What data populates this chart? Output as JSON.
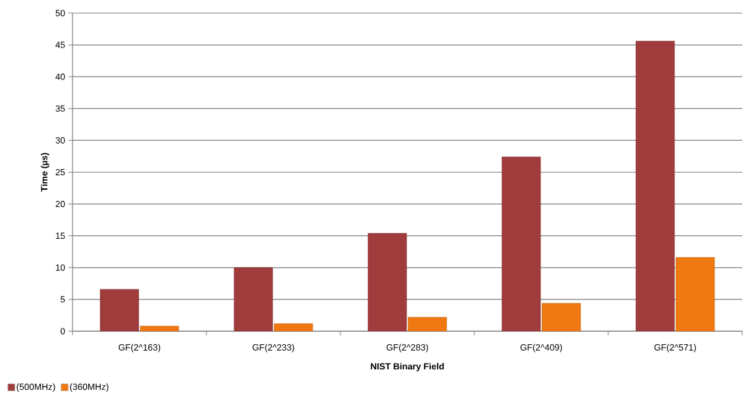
{
  "chart_data": {
    "type": "bar",
    "xlabel": "NIST Binary Field",
    "ylabel": "Time (µs)",
    "categories": [
      "GF(2^163)",
      "GF(2^233)",
      "GF(2^283)",
      "GF(2^409)",
      "GF(2^571)"
    ],
    "series": [
      {
        "name": "(500MHz)",
        "color": "#a03c3c",
        "values": [
          6.6,
          10,
          15.4,
          27.4,
          45.6
        ]
      },
      {
        "name": "(360MHz)",
        "color": "#f07810",
        "values": [
          0.8,
          1.2,
          2.2,
          4.4,
          11.6
        ]
      }
    ],
    "ylim": [
      0,
      50
    ],
    "yticks": [
      0,
      5,
      10,
      15,
      20,
      25,
      30,
      35,
      40,
      45,
      50
    ],
    "grid": "y",
    "legend": "bottom left"
  }
}
